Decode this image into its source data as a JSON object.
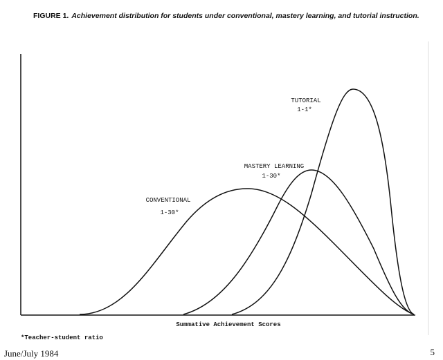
{
  "figure": {
    "label": "FIGURE 1.",
    "caption": "Achievement distribution for students under conventional, mastery learning, and tutorial instruction."
  },
  "curves": [
    {
      "name": "CONVENTIONAL",
      "ratio": "1-30*"
    },
    {
      "name": "MASTERY LEARNING",
      "ratio": "1-30*"
    },
    {
      "name": "TUTORIAL",
      "ratio": "1-1*"
    }
  ],
  "x_axis_label": "Summative Achievement Scores",
  "footnote": "*Teacher-student ratio",
  "footer": {
    "issue": "June/July 1984",
    "page": "5"
  }
}
